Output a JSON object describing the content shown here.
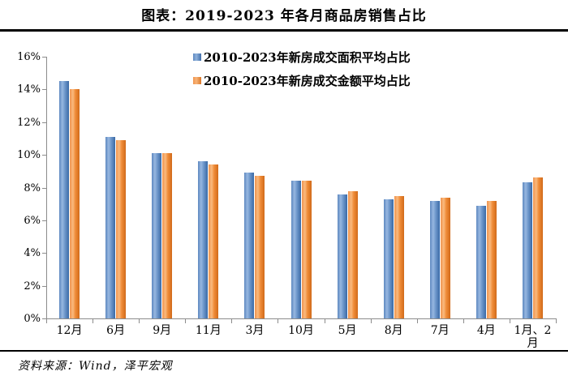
{
  "title": "图表：2019-2023 年各月商品房销售占比",
  "source_note": "资料来源：Wind，泽平宏观",
  "colors": {
    "series_area_blue": "#4f81bd",
    "series_amount_orange": "#f79646",
    "axis_gray": "#8c8c8c",
    "rule_black": "#000000"
  },
  "chart_data": {
    "type": "bar",
    "title": "图表：2019-2023 年各月商品房销售占比",
    "xlabel": "",
    "ylabel": "",
    "ylim": [
      0,
      16
    ],
    "ytick_labels": [
      "0%",
      "2%",
      "4%",
      "6%",
      "8%",
      "10%",
      "12%",
      "14%",
      "16%"
    ],
    "ytick_values": [
      0,
      2,
      4,
      6,
      8,
      10,
      12,
      14,
      16
    ],
    "grid": false,
    "legend_position": "top-center",
    "categories": [
      "12月",
      "6月",
      "9月",
      "11月",
      "3月",
      "10月",
      "5月",
      "8月",
      "7月",
      "4月",
      "1月、2月"
    ],
    "series": [
      {
        "name": "2010-2023年新房成交面积平均占比",
        "color": "#4f81bd",
        "values": [
          14.5,
          11.1,
          10.1,
          9.6,
          8.9,
          8.4,
          7.6,
          7.3,
          7.2,
          6.9,
          8.3
        ]
      },
      {
        "name": "2010-2023年新房成交金额平均占比",
        "color": "#f79646",
        "values": [
          14.0,
          10.9,
          10.1,
          9.4,
          8.7,
          8.4,
          7.8,
          7.5,
          7.4,
          7.2,
          8.6
        ]
      }
    ]
  }
}
